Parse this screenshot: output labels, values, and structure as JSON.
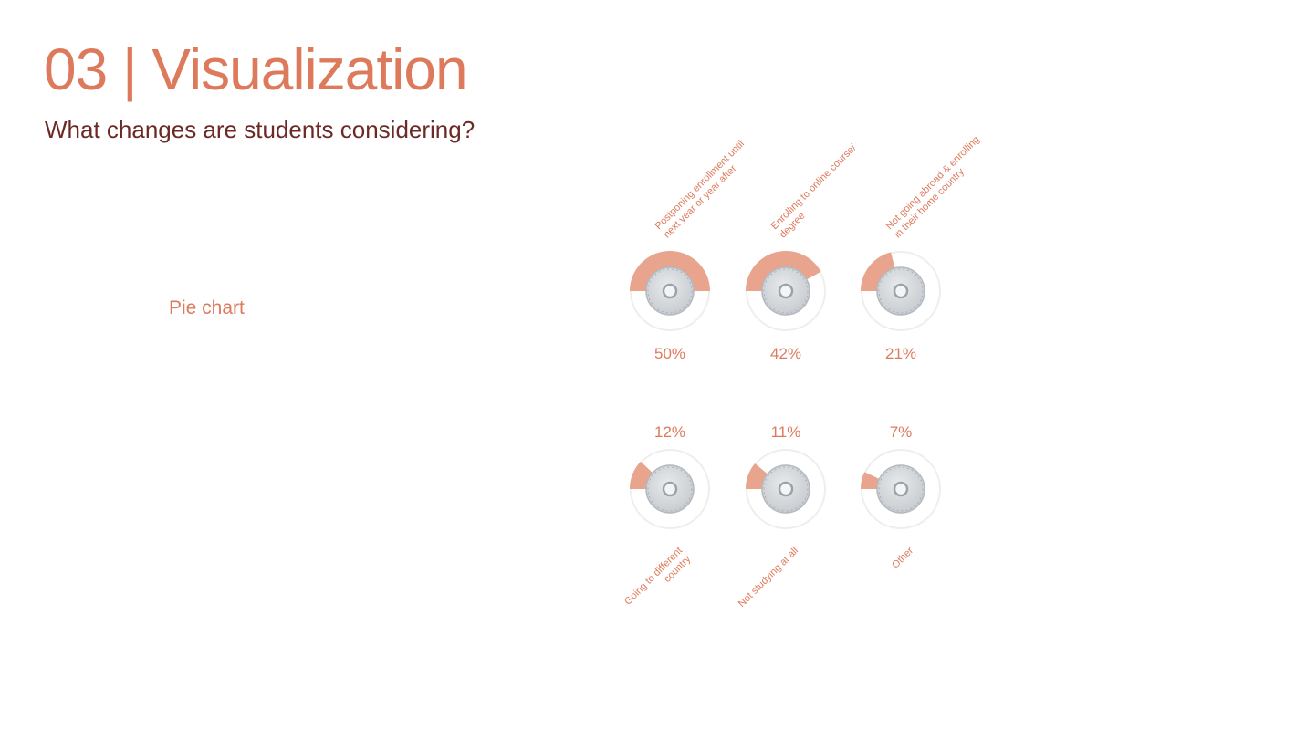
{
  "page": {
    "title": "03 | Visualization",
    "subtitle": "What changes are students considering?",
    "section_label": "Pie chart"
  },
  "colors": {
    "accent": "#de7a5c",
    "subtitle": "#6b2a26",
    "slice_fill": "#e8a48c",
    "ring": "#eeeeee",
    "disc_outer": "#c8ccd0",
    "disc_inner": "#e8eaec",
    "disc_hub": "#9ba3aa"
  },
  "chart_data": {
    "type": "pie",
    "title": "",
    "series": [
      {
        "label": "Postponing enrollment until next year or year after",
        "label_lines": [
          "Postponing enrollment until",
          "next year or year after"
        ],
        "value": 50,
        "value_label": "50%"
      },
      {
        "label": "Enrolling to online course/ degree",
        "label_lines": [
          "Enrolling to online course/",
          "degree"
        ],
        "value": 42,
        "value_label": "42%"
      },
      {
        "label": "Not going abroad & enrolling in their home country",
        "label_lines": [
          "Not going abroad & enrolling",
          "in their home country"
        ],
        "value": 21,
        "value_label": "21%"
      },
      {
        "label": "Going to different country",
        "label_lines": [
          "Going to different",
          "country"
        ],
        "value": 12,
        "value_label": "12%"
      },
      {
        "label": "Not studying at all",
        "label_lines": [
          "Not studying at all"
        ],
        "value": 11,
        "value_label": "11%"
      },
      {
        "label": "Other",
        "label_lines": [
          "Other"
        ],
        "value": 7,
        "value_label": "7%"
      }
    ],
    "unit": "%"
  }
}
